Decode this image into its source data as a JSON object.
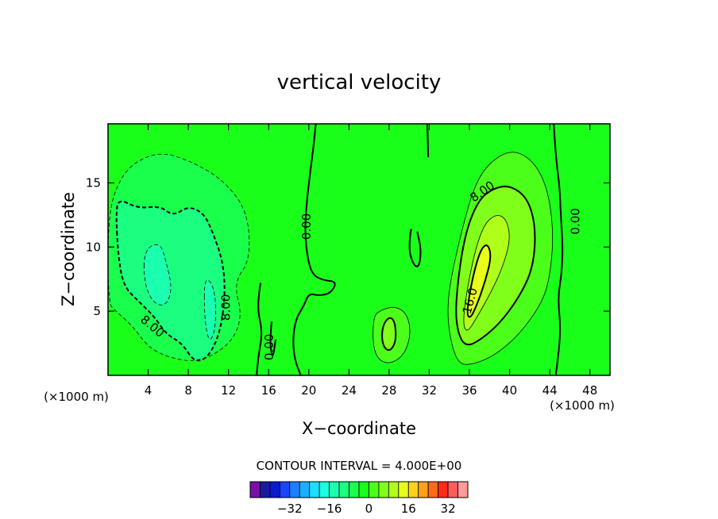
{
  "chart_data": {
    "type": "contour",
    "title": "vertical velocity",
    "xlabel": "X−coordinate",
    "ylabel": "Z−coordinate",
    "x_unit_left": "(×1000 m)",
    "x_unit_right": "(×1000 m)",
    "xlim": [
      0,
      50
    ],
    "ylim": [
      0,
      19.6
    ],
    "x_ticks": [
      4,
      8,
      12,
      16,
      20,
      24,
      28,
      32,
      36,
      40,
      44,
      48
    ],
    "y_ticks": [
      5,
      10,
      15
    ],
    "contour_interval_text": "CONTOUR INTERVAL =  4.000E+00",
    "contour_labels": [
      {
        "text": "8.00",
        "x": 4.4,
        "y": 3.8,
        "rot": 40
      },
      {
        "text": "8.00",
        "x": 11.8,
        "y": 5.3,
        "rot": -90
      },
      {
        "text": "0.00",
        "x": 16.1,
        "y": 2.2,
        "rot": -90
      },
      {
        "text": "0.00",
        "x": 19.8,
        "y": 11.6,
        "rot": -90
      },
      {
        "text": "8.00",
        "x": 37.3,
        "y": 14.3,
        "rot": -35
      },
      {
        "text": "16.0",
        "x": 36.1,
        "y": 5.8,
        "rot": -75
      },
      {
        "text": "0.00",
        "x": 46.6,
        "y": 12.0,
        "rot": -90
      }
    ],
    "colorbar": {
      "levels": [
        -44,
        -40,
        -36,
        -32,
        -28,
        -24,
        -20,
        -16,
        -12,
        -8,
        -4,
        0,
        4,
        8,
        12,
        16,
        20,
        24,
        28,
        32,
        36,
        40
      ],
      "colors": [
        "#7a0ea8",
        "#1a1a9e",
        "#0a1ad0",
        "#1a44ff",
        "#1a80ff",
        "#1ab0ff",
        "#1ae0ff",
        "#1affe0",
        "#1affb0",
        "#1aff80",
        "#1aff4c",
        "#1aff1a",
        "#4cff1a",
        "#80ff1a",
        "#b0ff1a",
        "#e8ff1a",
        "#ffd21a",
        "#ffa01a",
        "#ff6a1a",
        "#ff2a1a",
        "#ff5c5c",
        "#ff9a9a"
      ],
      "tick_labels": [
        {
          "text": "−32",
          "value": -32
        },
        {
          "text": "−16",
          "value": -16
        },
        {
          "text": "0",
          "value": 0
        },
        {
          "text": "16",
          "value": 16
        },
        {
          "text": "32",
          "value": 32
        }
      ]
    },
    "background_value": 0,
    "fields": [
      {
        "level": -4,
        "style": "dashed",
        "points": [
          [
            0,
            12.6
          ],
          [
            1.2,
            15.4
          ],
          [
            3,
            16.8
          ],
          [
            5.5,
            17.4
          ],
          [
            8.5,
            16.6
          ],
          [
            11.5,
            15.2
          ],
          [
            13.9,
            12.8
          ],
          [
            14.2,
            9
          ],
          [
            12.5,
            7.2
          ],
          [
            13.4,
            4.6
          ],
          [
            12.2,
            2.4
          ],
          [
            9,
            1
          ],
          [
            6,
            1.4
          ],
          [
            4,
            2.2
          ],
          [
            2.5,
            3.8
          ],
          [
            0.8,
            5
          ],
          [
            0,
            5.6
          ]
        ]
      },
      {
        "level": -8,
        "style": "dashed",
        "points": [
          [
            0.8,
            12.4
          ],
          [
            1,
            13.8
          ],
          [
            3,
            13
          ],
          [
            5.2,
            13.2
          ],
          [
            6.5,
            12.4
          ],
          [
            8,
            13.2
          ],
          [
            9.6,
            12.6
          ],
          [
            10.5,
            11
          ],
          [
            11.4,
            9
          ],
          [
            11.7,
            6.5
          ],
          [
            11.2,
            3.4
          ],
          [
            10,
            1.4
          ],
          [
            8.6,
            1
          ],
          [
            7.4,
            2.5
          ],
          [
            5.8,
            3.2
          ],
          [
            4.6,
            4.6
          ],
          [
            3,
            5.8
          ],
          [
            1.5,
            7
          ],
          [
            1,
            9.5
          ]
        ]
      },
      {
        "level": -12,
        "style": "dashed",
        "points": [
          [
            3.6,
            9.8
          ],
          [
            5.2,
            10.4
          ],
          [
            5.8,
            8.8
          ],
          [
            6.4,
            6.8
          ],
          [
            5.8,
            5.4
          ],
          [
            4.5,
            5.6
          ],
          [
            3.6,
            7.2
          ]
        ]
      },
      {
        "level": -12,
        "style": "dashed",
        "points": [
          [
            9.6,
            7.6
          ],
          [
            10.4,
            7.2
          ],
          [
            10.8,
            5.4
          ],
          [
            10.6,
            3.2
          ],
          [
            10,
            2.6
          ],
          [
            9.6,
            4.6
          ]
        ]
      },
      {
        "level": 4,
        "style": "solid",
        "points": [
          [
            34,
            7
          ],
          [
            35.2,
            11.2
          ],
          [
            36.5,
            14.8
          ],
          [
            38,
            16.6
          ],
          [
            40.2,
            17.6
          ],
          [
            42.3,
            16.8
          ],
          [
            43.8,
            14.6
          ],
          [
            44.4,
            11
          ],
          [
            44,
            7.6
          ],
          [
            43.2,
            5.6
          ],
          [
            41,
            3.2
          ],
          [
            38.6,
            1.6
          ],
          [
            36.6,
            0.9
          ],
          [
            35,
            0.8
          ],
          [
            34.2,
            2.4
          ],
          [
            33.8,
            4.6
          ]
        ]
      },
      {
        "level": 4,
        "style": "solid",
        "points": [
          [
            26.4,
            4.6
          ],
          [
            27.2,
            5.1
          ],
          [
            28.6,
            5.4
          ],
          [
            29.8,
            4.8
          ],
          [
            30.2,
            3.2
          ],
          [
            29.4,
            1.4
          ],
          [
            27.6,
            0.8
          ],
          [
            26.4,
            1.8
          ]
        ]
      },
      {
        "level": 8,
        "style": "solid",
        "points": [
          [
            34.6,
            5.6
          ],
          [
            35.4,
            10.6
          ],
          [
            36.8,
            13.6
          ],
          [
            38.4,
            14.6
          ],
          [
            40.1,
            14.8
          ],
          [
            41.8,
            13.8
          ],
          [
            42.6,
            11.6
          ],
          [
            42.4,
            8.6
          ],
          [
            41.2,
            6.4
          ],
          [
            39.2,
            4.2
          ],
          [
            37.2,
            2.8
          ],
          [
            35.6,
            2.2
          ],
          [
            34.8,
            3.4
          ]
        ]
      },
      {
        "level": 8,
        "style": "solid",
        "points": [
          [
            27.3,
            3.8
          ],
          [
            28,
            4.6
          ],
          [
            28.6,
            4.2
          ],
          [
            28.7,
            2.6
          ],
          [
            28,
            1.8
          ],
          [
            27.3,
            2.4
          ]
        ]
      },
      {
        "level": 12,
        "style": "solid",
        "points": [
          [
            35.3,
            4.4
          ],
          [
            36.2,
            8.6
          ],
          [
            37.3,
            11.6
          ],
          [
            38.6,
            12.6
          ],
          [
            39.7,
            12.2
          ],
          [
            40.1,
            10.6
          ],
          [
            39.3,
            8.4
          ],
          [
            38.1,
            6.4
          ],
          [
            36.8,
            4.6
          ],
          [
            35.7,
            3.2
          ]
        ]
      },
      {
        "level": 16,
        "style": "solid",
        "points": [
          [
            35.7,
            4.8
          ],
          [
            36.3,
            7.6
          ],
          [
            37.1,
            9.8
          ],
          [
            37.8,
            10.3
          ],
          [
            38.2,
            9.3
          ],
          [
            37.6,
            7.4
          ],
          [
            36.8,
            5.6
          ],
          [
            36.1,
            4.4
          ]
        ]
      }
    ],
    "contour_lines": [
      {
        "level": 0,
        "style": "solid",
        "points": [
          [
            20.7,
            19.6
          ],
          [
            20.5,
            18
          ],
          [
            20.2,
            16.2
          ],
          [
            19.8,
            13.6
          ],
          [
            19.6,
            11.2
          ],
          [
            19.9,
            9
          ],
          [
            20.4,
            7.8
          ],
          [
            21.5,
            7.4
          ],
          [
            22.8,
            7.3
          ],
          [
            22.2,
            6.4
          ],
          [
            21,
            6.2
          ],
          [
            20,
            6.4
          ],
          [
            19.5,
            5.4
          ],
          [
            18.7,
            4.4
          ],
          [
            18.4,
            2.8
          ],
          [
            18.6,
            1.2
          ],
          [
            19.2,
            0
          ]
        ]
      },
      {
        "level": 0,
        "style": "solid",
        "points": [
          [
            31.8,
            19.6
          ],
          [
            31.9,
            17
          ]
        ]
      },
      {
        "level": 0,
        "style": "solid",
        "points": [
          [
            44.4,
            19.6
          ],
          [
            44.6,
            17
          ],
          [
            45,
            14.6
          ],
          [
            45.1,
            12.4
          ],
          [
            45.3,
            10.2
          ],
          [
            45.2,
            8
          ],
          [
            44.8,
            6
          ],
          [
            45.1,
            3.6
          ],
          [
            44.8,
            1.2
          ],
          [
            44.6,
            0
          ]
        ]
      },
      {
        "level": 0,
        "style": "solid",
        "points": [
          [
            15.2,
            7.2
          ],
          [
            14.8,
            5.4
          ],
          [
            15.4,
            3.4
          ],
          [
            15,
            1.6
          ],
          [
            14.8,
            0
          ]
        ]
      },
      {
        "level": 0,
        "style": "solid",
        "points": [
          [
            30.2,
            11.4
          ],
          [
            29.9,
            10
          ],
          [
            30.4,
            8.6
          ],
          [
            31,
            8.4
          ],
          [
            31.2,
            9.8
          ],
          [
            30.8,
            11.2
          ]
        ]
      },
      {
        "level": 0,
        "style": "solid",
        "points": [
          [
            16.3,
            4.2
          ],
          [
            16.1,
            2.6
          ],
          [
            16.4,
            1.2
          ],
          [
            16.7,
            2.8
          ]
        ]
      }
    ],
    "grid": false,
    "legend": "none"
  }
}
